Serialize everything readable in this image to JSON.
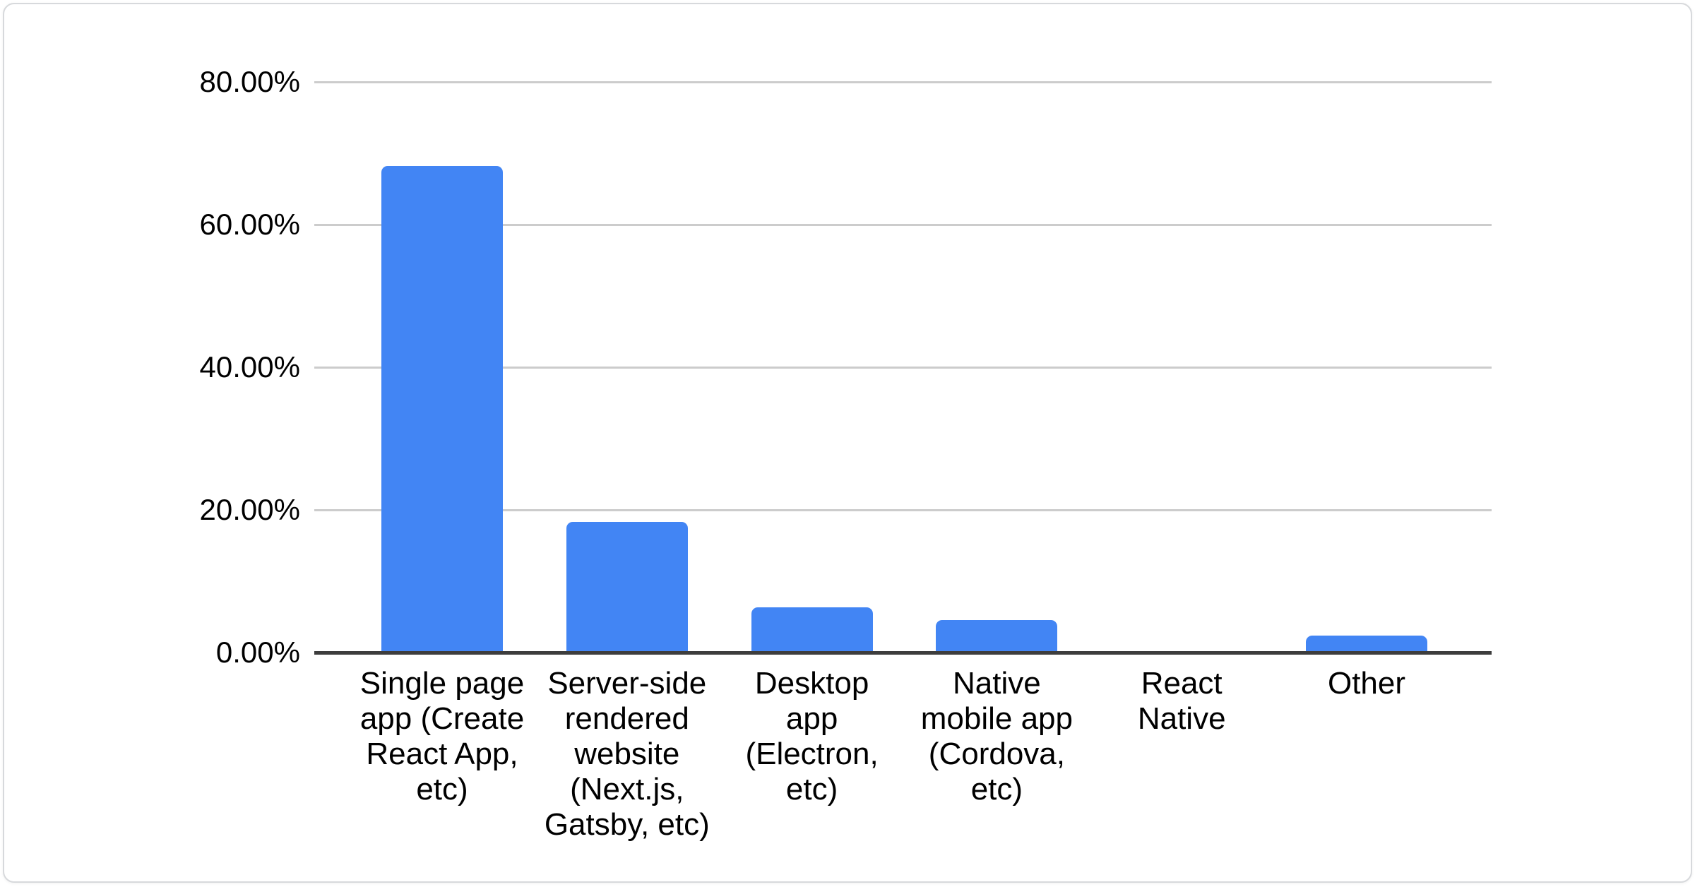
{
  "chart_data": {
    "type": "bar",
    "title": "",
    "xlabel": "",
    "ylabel": "",
    "categories": [
      "Single page app (Create React App, etc)",
      "Server-side rendered website (Next.js, Gatsby, etc)",
      "Desktop app (Electron, etc)",
      "Native mobile app (Cordova, etc)",
      "React Native",
      "Other"
    ],
    "category_lines": [
      [
        "Single page",
        "app (Create",
        "React App,",
        "etc)"
      ],
      [
        "Server-side",
        "rendered",
        "website",
        "(Next.js,",
        "Gatsby, etc)"
      ],
      [
        "Desktop",
        "app",
        "(Electron,",
        "etc)"
      ],
      [
        "Native",
        "mobile app",
        "(Cordova,",
        "etc)"
      ],
      [
        "React",
        "Native"
      ],
      [
        "Other"
      ]
    ],
    "values": [
      68.2,
      18.3,
      6.3,
      4.6,
      0,
      2.4
    ],
    "unit": "%",
    "ylim": [
      0,
      80
    ],
    "yticks": [
      {
        "value": 80,
        "label": "80.00%"
      },
      {
        "value": 60,
        "label": "60.00%"
      },
      {
        "value": 40,
        "label": "40.00%"
      },
      {
        "value": 20,
        "label": "20.00%"
      },
      {
        "value": 0,
        "label": "0.00%"
      }
    ],
    "grid": true,
    "legend": "none",
    "colors": {
      "bar": "#4285f4",
      "gridline": "#cccccc",
      "axis_line": "#3d3d3d",
      "text": "#000000",
      "card_border": "#d7d9dc",
      "card_background": "#ffffff"
    }
  }
}
